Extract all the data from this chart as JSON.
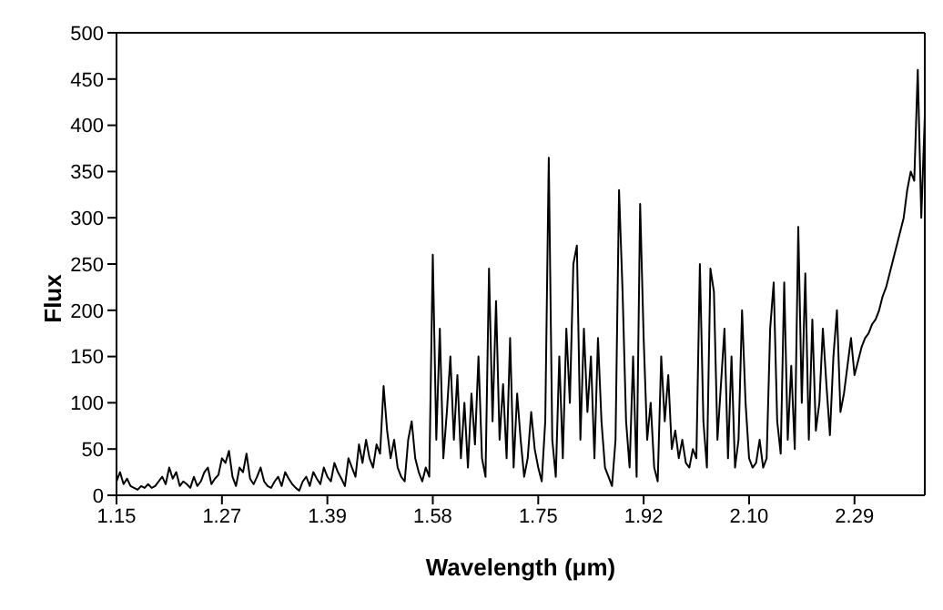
{
  "chart_data": {
    "type": "line",
    "xlabel": "Wavelength (μm)",
    "ylabel": "Flux",
    "ylim": [
      0,
      500
    ],
    "yticks": [
      0,
      50,
      100,
      150,
      200,
      250,
      300,
      350,
      400,
      450,
      500
    ],
    "grid": false,
    "legend": false,
    "marker": "none",
    "line_style": "solid",
    "categories": [
      "1.15",
      null,
      null,
      null,
      null,
      null,
      null,
      null,
      null,
      null,
      null,
      null,
      null,
      null,
      null,
      null,
      null,
      null,
      null,
      null,
      null,
      null,
      null,
      null,
      null,
      null,
      null,
      null,
      null,
      null,
      "1.27",
      null,
      null,
      null,
      null,
      null,
      null,
      null,
      null,
      null,
      null,
      null,
      null,
      null,
      null,
      null,
      null,
      null,
      null,
      null,
      null,
      null,
      null,
      null,
      null,
      null,
      null,
      null,
      null,
      null,
      "1.39",
      null,
      null,
      null,
      null,
      null,
      null,
      null,
      null,
      null,
      null,
      null,
      null,
      null,
      null,
      null,
      null,
      null,
      null,
      null,
      null,
      null,
      null,
      null,
      null,
      null,
      null,
      null,
      null,
      null,
      "1.58",
      null,
      null,
      null,
      null,
      null,
      null,
      null,
      null,
      null,
      null,
      null,
      null,
      null,
      null,
      null,
      null,
      null,
      null,
      null,
      null,
      null,
      null,
      null,
      null,
      null,
      null,
      null,
      null,
      null,
      "1.75",
      null,
      null,
      null,
      null,
      null,
      null,
      null,
      null,
      null,
      null,
      null,
      null,
      null,
      null,
      null,
      null,
      null,
      null,
      null,
      null,
      null,
      null,
      null,
      null,
      null,
      null,
      null,
      null,
      null,
      "1.92",
      null,
      null,
      null,
      null,
      null,
      null,
      null,
      null,
      null,
      null,
      null,
      null,
      null,
      null,
      null,
      null,
      null,
      null,
      null,
      null,
      null,
      null,
      null,
      null,
      null,
      null,
      null,
      null,
      null,
      "2.10",
      null,
      null,
      null,
      null,
      null,
      null,
      null,
      null,
      null,
      null,
      null,
      null,
      null,
      null,
      null,
      null,
      null,
      null,
      null,
      null,
      null,
      null,
      null,
      null,
      null,
      null,
      null,
      null,
      null,
      "2.29",
      null,
      null,
      null,
      null,
      null,
      null,
      null,
      null,
      null,
      null,
      null,
      null,
      null,
      null,
      null,
      null,
      null,
      null,
      null,
      null
    ],
    "series": [
      {
        "color": "#000000",
        "values": [
          15,
          25,
          12,
          18,
          10,
          8,
          6,
          10,
          8,
          12,
          8,
          10,
          15,
          20,
          12,
          30,
          18,
          25,
          10,
          15,
          12,
          8,
          20,
          10,
          15,
          25,
          30,
          12,
          18,
          22,
          40,
          35,
          48,
          20,
          10,
          30,
          25,
          45,
          18,
          12,
          20,
          30,
          15,
          10,
          8,
          15,
          20,
          10,
          25,
          18,
          12,
          8,
          5,
          15,
          20,
          10,
          25,
          18,
          12,
          30,
          20,
          15,
          35,
          25,
          18,
          10,
          40,
          30,
          20,
          55,
          35,
          60,
          40,
          30,
          55,
          45,
          118,
          70,
          40,
          60,
          30,
          20,
          15,
          60,
          80,
          40,
          25,
          15,
          30,
          20,
          260,
          60,
          180,
          40,
          90,
          150,
          60,
          130,
          40,
          100,
          30,
          110,
          55,
          150,
          40,
          20,
          245,
          80,
          210,
          60,
          120,
          40,
          170,
          30,
          110,
          60,
          20,
          40,
          90,
          50,
          30,
          15,
          80,
          365,
          60,
          20,
          150,
          40,
          180,
          100,
          250,
          270,
          60,
          180,
          90,
          150,
          40,
          170,
          80,
          30,
          20,
          10,
          60,
          330,
          220,
          80,
          30,
          150,
          20,
          315,
          170,
          60,
          100,
          30,
          15,
          150,
          80,
          130,
          50,
          70,
          40,
          60,
          35,
          30,
          50,
          40,
          250,
          80,
          30,
          245,
          220,
          60,
          120,
          180,
          40,
          150,
          30,
          60,
          200,
          100,
          40,
          30,
          35,
          60,
          30,
          40,
          180,
          230,
          80,
          45,
          230,
          60,
          140,
          50,
          290,
          100,
          240,
          60,
          190,
          70,
          100,
          180,
          120,
          65,
          150,
          200,
          90,
          110,
          140,
          170,
          130,
          145,
          160,
          170,
          175,
          185,
          190,
          200,
          215,
          225,
          240,
          255,
          270,
          285,
          300,
          330,
          350,
          340,
          460,
          300,
          410
        ]
      }
    ]
  }
}
